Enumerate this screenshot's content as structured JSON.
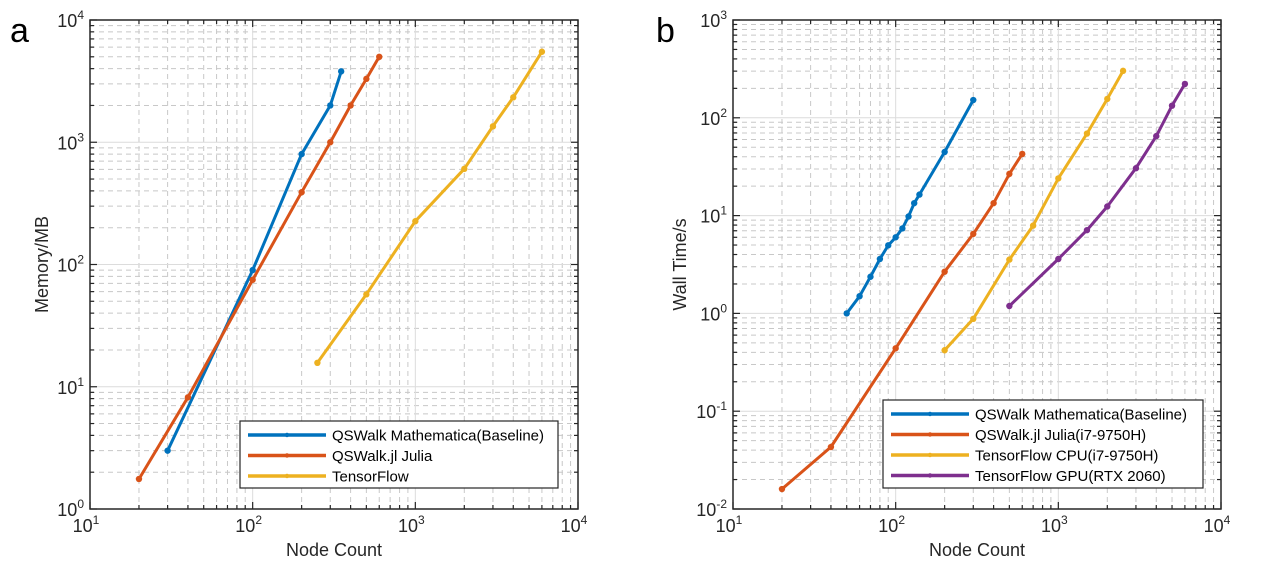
{
  "chart_data": [
    {
      "type": "line",
      "panel_label": "a",
      "title": "",
      "xlabel": "Node Count",
      "ylabel": "Memory/MB",
      "xscale": "log",
      "yscale": "log",
      "xlim": [
        10,
        10000
      ],
      "ylim": [
        1,
        10000
      ],
      "x_ticks": [
        {
          "base": "10",
          "exp": "1",
          "value": 10
        },
        {
          "base": "10",
          "exp": "2",
          "value": 100
        },
        {
          "base": "10",
          "exp": "3",
          "value": 1000
        },
        {
          "base": "10",
          "exp": "4",
          "value": 10000
        }
      ],
      "y_ticks": [
        {
          "base": "10",
          "exp": "0",
          "value": 1
        },
        {
          "base": "10",
          "exp": "1",
          "value": 10
        },
        {
          "base": "10",
          "exp": "2",
          "value": 100
        },
        {
          "base": "10",
          "exp": "3",
          "value": 1000
        },
        {
          "base": "10",
          "exp": "4",
          "value": 10000
        }
      ],
      "grid": true,
      "minor_grid": true,
      "legend_position": "bottom-right",
      "series": [
        {
          "name": "QSWalk Mathematica(Baseline)",
          "color": "#0072BD",
          "x": [
            30,
            100,
            200,
            300,
            350
          ],
          "y": [
            3.0,
            90,
            800,
            2000,
            3800
          ]
        },
        {
          "name": "QSWalk.jl Julia",
          "color": "#D95319",
          "x": [
            20,
            40,
            100,
            200,
            300,
            400,
            500,
            600
          ],
          "y": [
            1.76,
            8.2,
            75,
            390,
            1000,
            2000,
            3300,
            5000
          ]
        },
        {
          "name": "TensorFlow",
          "color": "#EDB120",
          "x": [
            250,
            500,
            1000,
            2000,
            3000,
            4000,
            6000
          ],
          "y": [
            15.7,
            57,
            226,
            606,
            1350,
            2330,
            5500
          ]
        }
      ]
    },
    {
      "type": "line",
      "panel_label": "b",
      "title": "",
      "xlabel": "Node Count",
      "ylabel": "Wall Time/s",
      "xscale": "log",
      "yscale": "log",
      "xlim": [
        10,
        10000
      ],
      "ylim": [
        0.01,
        1000
      ],
      "x_ticks": [
        {
          "base": "10",
          "exp": "1",
          "value": 10
        },
        {
          "base": "10",
          "exp": "2",
          "value": 100
        },
        {
          "base": "10",
          "exp": "3",
          "value": 1000
        },
        {
          "base": "10",
          "exp": "4",
          "value": 10000
        }
      ],
      "y_ticks": [
        {
          "base": "10",
          "exp": "-2",
          "value": 0.01
        },
        {
          "base": "10",
          "exp": "-1",
          "value": 0.1
        },
        {
          "base": "10",
          "exp": "0",
          "value": 1
        },
        {
          "base": "10",
          "exp": "1",
          "value": 10
        },
        {
          "base": "10",
          "exp": "2",
          "value": 100
        },
        {
          "base": "10",
          "exp": "3",
          "value": 1000
        }
      ],
      "grid": true,
      "minor_grid": true,
      "legend_position": "bottom-right",
      "series": [
        {
          "name": "QSWalk Mathematica(Baseline)",
          "color": "#0072BD",
          "x": [
            50,
            60,
            70,
            80,
            90,
            100,
            110,
            120,
            130,
            140,
            200,
            300
          ],
          "y": [
            1.0,
            1.5,
            2.37,
            3.6,
            4.96,
            6.0,
            7.4,
            9.8,
            13.4,
            16.4,
            44.7,
            152
          ]
        },
        {
          "name": "QSWalk.jl Julia(i7-9750H)",
          "color": "#D95319",
          "x": [
            20,
            40,
            100,
            200,
            300,
            400,
            500,
            600
          ],
          "y": [
            0.016,
            0.043,
            0.44,
            2.67,
            6.5,
            13.4,
            26.7,
            42.7
          ]
        },
        {
          "name": "TensorFlow CPU(i7-9750H)",
          "color": "#EDB120",
          "x": [
            200,
            300,
            500,
            700,
            1000,
            1500,
            2000,
            2500
          ],
          "y": [
            0.42,
            0.88,
            3.55,
            7.9,
            24,
            69,
            156,
            302
          ]
        },
        {
          "name": "TensorFlow GPU(RTX 2060)",
          "color": "#7E2F8E",
          "x": [
            500,
            1000,
            1500,
            2000,
            3000,
            4000,
            5000,
            6000
          ],
          "y": [
            1.19,
            3.6,
            7.1,
            12.4,
            30.5,
            65,
            133,
            222
          ]
        }
      ]
    }
  ]
}
